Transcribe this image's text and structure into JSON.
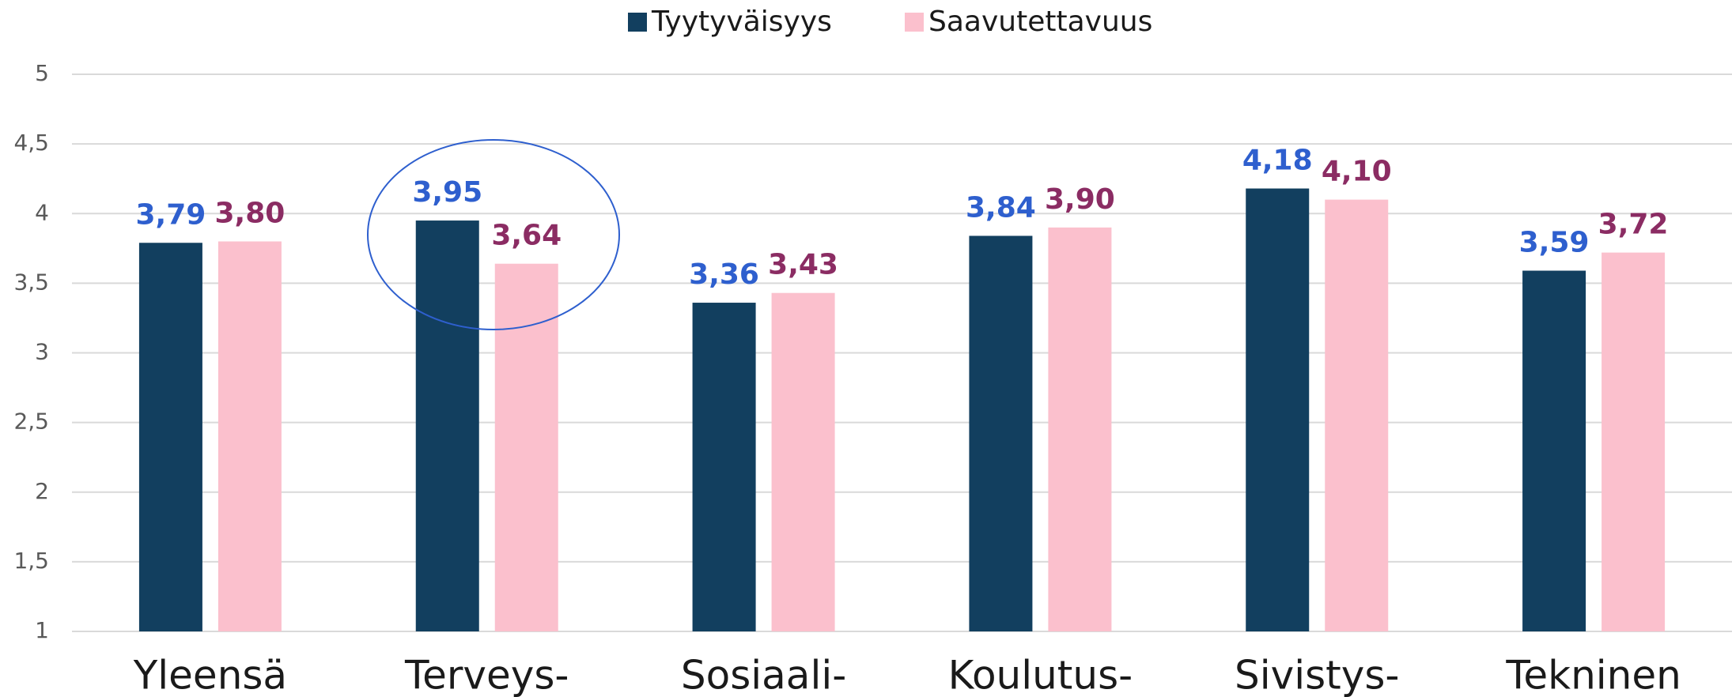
{
  "chart_data": {
    "type": "bar",
    "categories": [
      "Yleensä",
      "Terveys-",
      "Sosiaali-",
      "Koulutus-",
      "Sivistys-",
      "Tekninen"
    ],
    "series": [
      {
        "name": "Tyytyväisyys",
        "color": "#123f5f",
        "label_color": "#2e5fce",
        "values": [
          3.79,
          3.95,
          3.36,
          3.84,
          4.18,
          3.59
        ],
        "value_labels": [
          "3,79",
          "3,95",
          "3,36",
          "3,84",
          "4,18",
          "3,59"
        ]
      },
      {
        "name": "Saavutettavuus",
        "color": "#fbc0cd",
        "label_color": "#8b2c63",
        "values": [
          3.8,
          3.64,
          3.43,
          3.9,
          4.1,
          3.72
        ],
        "value_labels": [
          "3,80",
          "3,64",
          "3,43",
          "3,90",
          "4,10",
          "3,72"
        ]
      }
    ],
    "ylim": [
      1,
      5
    ],
    "yticks": [
      1,
      {
        "value": 1.5,
        "label": "1,5"
      },
      2,
      {
        "value": 2.5,
        "label": "2,5"
      },
      3,
      {
        "value": 3.5,
        "label": "3,5"
      },
      4,
      {
        "value": 4.5,
        "label": "4,5"
      },
      5
    ],
    "grid": true,
    "legend": "top"
  }
}
